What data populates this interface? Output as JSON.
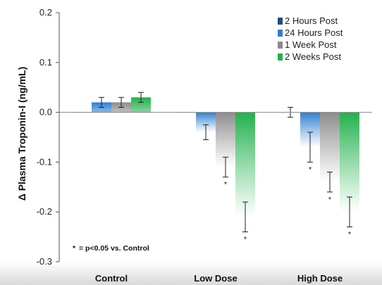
{
  "chart_data": {
    "type": "bar",
    "ylabel": "Δ Plasma Troponin-I (ng/mL)",
    "xlabel": "",
    "ylim": [
      -0.3,
      0.2
    ],
    "yticks": [
      "0.2",
      "0.1",
      "0.0",
      "-0.1",
      "-0.2",
      "-0.3"
    ],
    "categories": [
      "Control",
      "Low Dose",
      "High Dose"
    ],
    "legend_position": "top-right",
    "annotation": "= p<0.05 vs. Control",
    "annotation_star": "*",
    "series": [
      {
        "name": "2 Hours Post",
        "color": "#1f4e79",
        "values": [
          0.0,
          0.0,
          0.0
        ],
        "errors": [
          0.0,
          0.0,
          0.01
        ],
        "significant": [
          false,
          false,
          false
        ]
      },
      {
        "name": "24 Hours Post",
        "color": "#2f7fd0",
        "values": [
          0.02,
          -0.04,
          -0.07
        ],
        "errors": [
          0.01,
          0.015,
          0.03
        ],
        "significant": [
          false,
          false,
          true
        ]
      },
      {
        "name": "1 Week Post",
        "color": "#8c8c8c",
        "values": [
          0.02,
          -0.11,
          -0.14
        ],
        "errors": [
          0.01,
          0.02,
          0.02
        ],
        "significant": [
          false,
          true,
          true
        ]
      },
      {
        "name": "2 Weeks Post",
        "color": "#22b14c",
        "values": [
          0.03,
          -0.21,
          -0.2
        ],
        "errors": [
          0.01,
          0.03,
          0.03
        ],
        "significant": [
          false,
          true,
          true
        ]
      }
    ]
  }
}
